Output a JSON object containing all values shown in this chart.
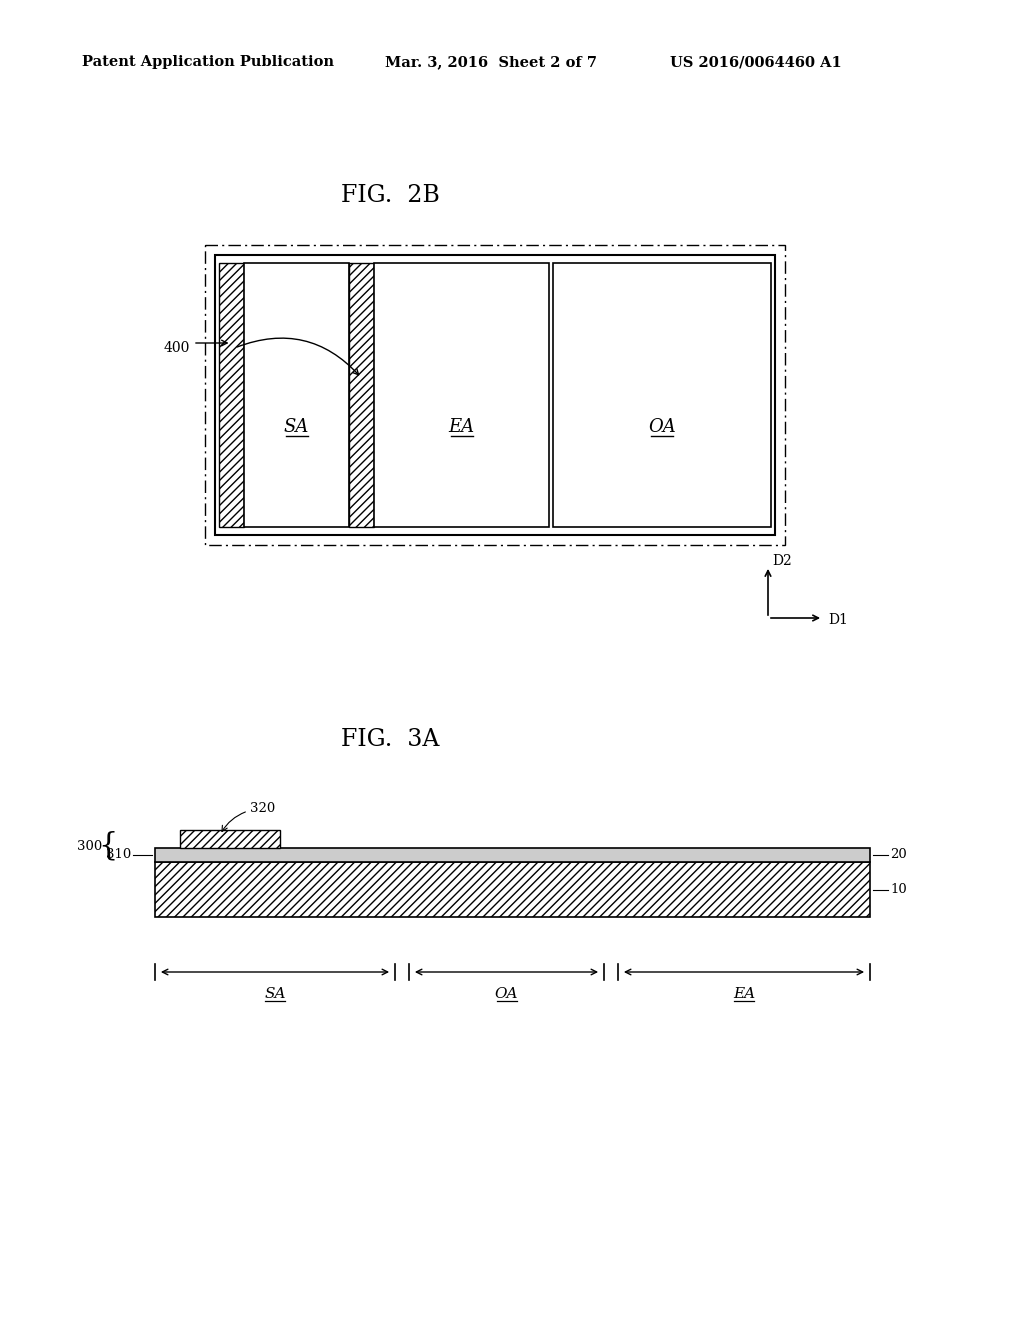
{
  "header_left": "Patent Application Publication",
  "header_mid": "Mar. 3, 2016  Sheet 2 of 7",
  "header_right": "US 2016/0064460 A1",
  "fig2b_title": "FIG.  2B",
  "fig3a_title": "FIG.  3A",
  "bg_color": "#ffffff",
  "line_color": "#000000",
  "label_SA": "SA",
  "label_EA": "EA",
  "label_OA": "OA",
  "label_400": "400",
  "label_300": "300",
  "label_310": "310",
  "label_320": "320",
  "label_10": "10",
  "label_20": "20",
  "label_D1": "D1",
  "label_D2": "D2"
}
